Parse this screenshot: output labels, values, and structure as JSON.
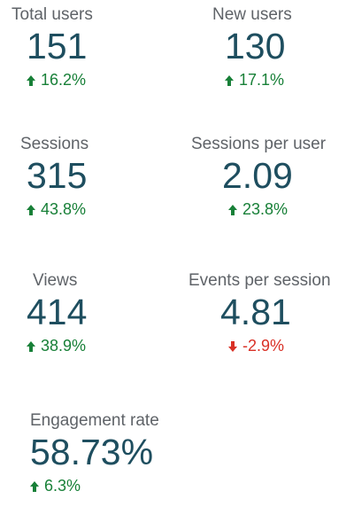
{
  "metrics": [
    {
      "label": "Total users",
      "value": "151",
      "delta": "16.2%",
      "direction": "up"
    },
    {
      "label": "New users",
      "value": "130",
      "delta": "17.1%",
      "direction": "up"
    },
    {
      "label": "Sessions",
      "value": "315",
      "delta": "43.8%",
      "direction": "up"
    },
    {
      "label": "Sessions per user",
      "value": "2.09",
      "delta": "23.8%",
      "direction": "up"
    },
    {
      "label": "Views",
      "value": "414",
      "delta": "38.9%",
      "direction": "up"
    },
    {
      "label": "Events per session",
      "value": "4.81",
      "delta": "-2.9%",
      "direction": "down"
    },
    {
      "label": "Engagement rate",
      "value": "58.73%",
      "delta": "6.3%",
      "direction": "up"
    }
  ],
  "colors": {
    "value": "#1e4e5f",
    "label": "#5f6368",
    "up": "#188038",
    "down": "#d93025"
  },
  "icons": {
    "up": "arrow-up-icon",
    "down": "arrow-down-icon"
  }
}
